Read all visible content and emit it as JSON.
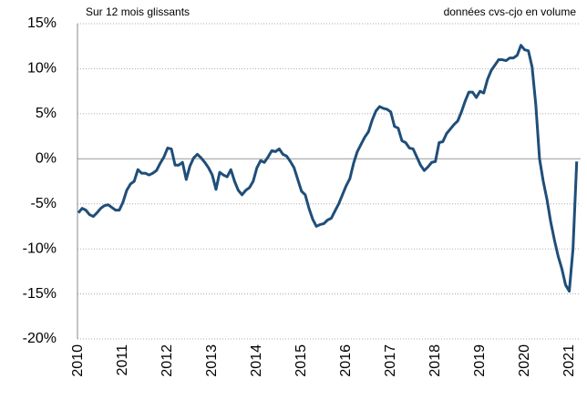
{
  "chart_data": {
    "type": "line",
    "annotations": [
      "Sur 12 mois glissants",
      "données cvs-cjo en volume"
    ],
    "categories": [
      "2010",
      null,
      null,
      null,
      null,
      null,
      null,
      null,
      null,
      null,
      null,
      null,
      "2011",
      null,
      null,
      null,
      null,
      null,
      null,
      null,
      null,
      null,
      null,
      null,
      "2012",
      null,
      null,
      null,
      null,
      null,
      null,
      null,
      null,
      null,
      null,
      null,
      "2013",
      null,
      null,
      null,
      null,
      null,
      null,
      null,
      null,
      null,
      null,
      null,
      "2014",
      null,
      null,
      null,
      null,
      null,
      null,
      null,
      null,
      null,
      null,
      null,
      "2015",
      null,
      null,
      null,
      null,
      null,
      null,
      null,
      null,
      null,
      null,
      null,
      "2016",
      null,
      null,
      null,
      null,
      null,
      null,
      null,
      null,
      null,
      null,
      null,
      "2017",
      null,
      null,
      null,
      null,
      null,
      null,
      null,
      null,
      null,
      null,
      null,
      "2018",
      null,
      null,
      null,
      null,
      null,
      null,
      null,
      null,
      null,
      null,
      null,
      "2019",
      null,
      null,
      null,
      null,
      null,
      null,
      null,
      null,
      null,
      null,
      null,
      "2020",
      null,
      null,
      null,
      null,
      null,
      null,
      null,
      null,
      null,
      null,
      null,
      "2021",
      null,
      null
    ],
    "series": [
      {
        "color": "#1f4e79",
        "values": [
          -6.0,
          -5.5,
          -5.7,
          -6.2,
          -6.4,
          -6.0,
          -5.5,
          -5.2,
          -5.1,
          -5.4,
          -5.7,
          -5.7,
          -4.8,
          -3.5,
          -2.8,
          -2.5,
          -1.2,
          -1.6,
          -1.6,
          -1.8,
          -1.6,
          -1.3,
          -0.5,
          0.2,
          1.2,
          1.1,
          -0.7,
          -0.7,
          -0.4,
          -2.3,
          -0.8,
          0.1,
          0.5,
          0.1,
          -0.4,
          -1.0,
          -1.8,
          -3.4,
          -1.5,
          -1.8,
          -2.0,
          -1.2,
          -2.5,
          -3.5,
          -4.0,
          -3.5,
          -3.2,
          -2.5,
          -1.0,
          -0.2,
          -0.4,
          0.2,
          0.9,
          0.8,
          1.1,
          0.5,
          0.3,
          -0.3,
          -1.0,
          -2.3,
          -3.6,
          -4.0,
          -5.5,
          -6.7,
          -7.5,
          -7.3,
          -7.2,
          -6.8,
          -6.6,
          -5.8,
          -5.0,
          -4.0,
          -3.0,
          -2.2,
          -0.5,
          0.8,
          1.6,
          2.4,
          3.0,
          4.3,
          5.3,
          5.8,
          5.6,
          5.5,
          5.2,
          3.6,
          3.4,
          2.0,
          1.8,
          1.2,
          1.1,
          0.2,
          -0.7,
          -1.3,
          -0.9,
          -0.4,
          -0.3,
          1.8,
          1.9,
          2.8,
          3.3,
          3.8,
          4.2,
          5.2,
          6.4,
          7.4,
          7.4,
          6.8,
          7.5,
          7.3,
          8.8,
          9.8,
          10.4,
          11.0,
          11.0,
          10.9,
          11.2,
          11.2,
          11.5,
          12.6,
          12.1,
          12.0,
          10.2,
          6.0,
          0.0,
          -2.5,
          -4.5,
          -7.0,
          -9.0,
          -10.8,
          -12.2,
          -14.0,
          -14.7,
          -10.0,
          -0.3
        ]
      }
    ],
    "ylim": [
      -20,
      15
    ],
    "yticks": [
      {
        "value": -20,
        "label": "-20%"
      },
      {
        "value": -15,
        "label": "-15%"
      },
      {
        "value": -10,
        "label": "-10%"
      },
      {
        "value": -5,
        "label": "-5%"
      },
      {
        "value": 0,
        "label": "0%"
      },
      {
        "value": 5,
        "label": "5%"
      },
      {
        "value": 10,
        "label": "10%"
      },
      {
        "value": 15,
        "label": "15%"
      }
    ],
    "grid": true
  }
}
